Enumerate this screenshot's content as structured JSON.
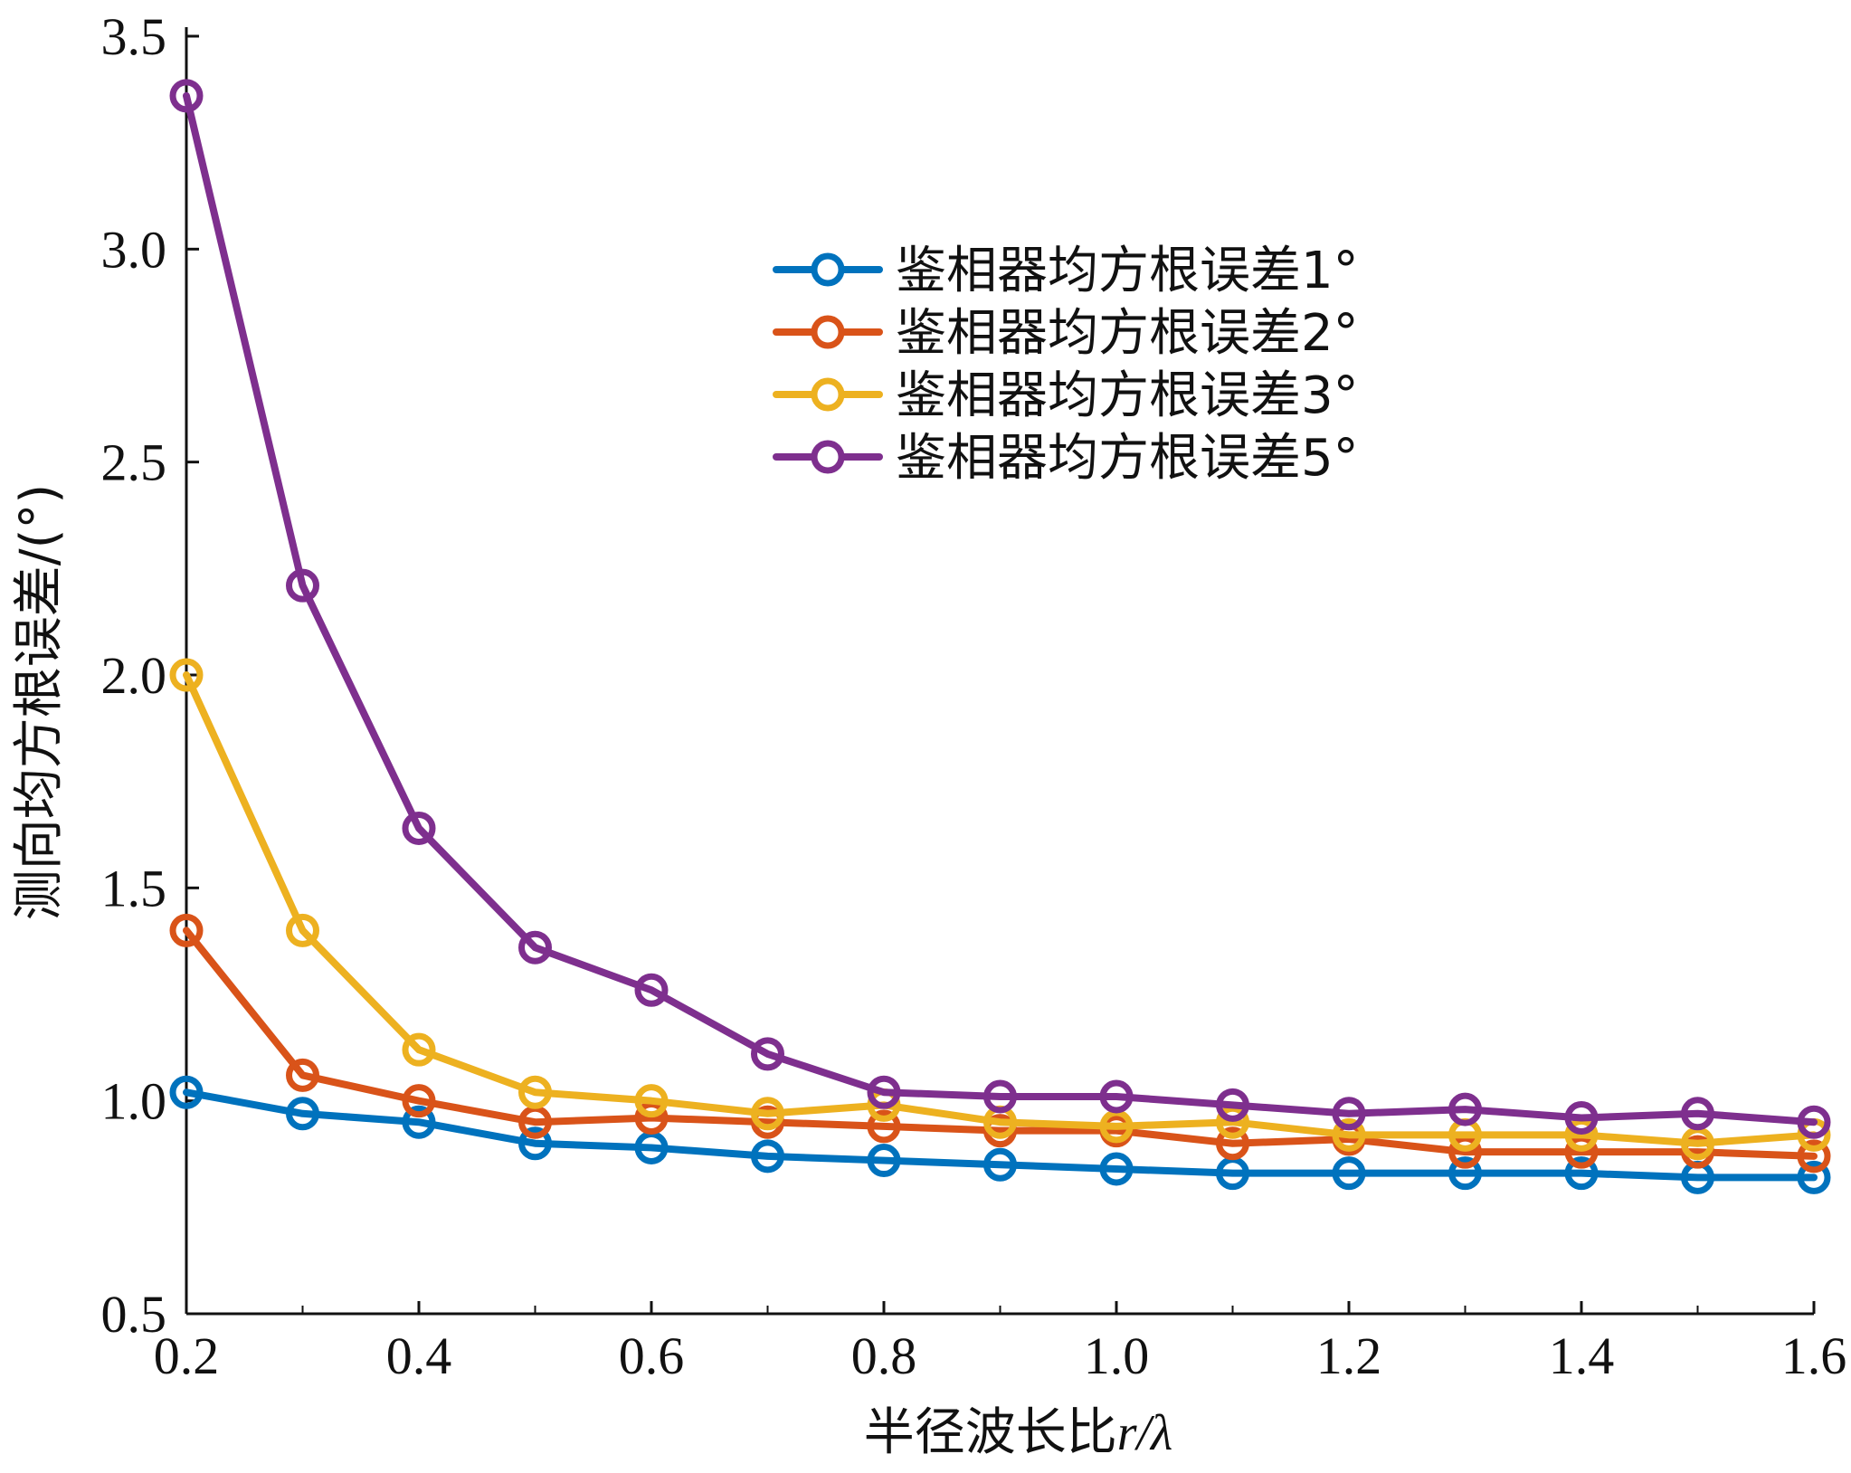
{
  "chart_data": {
    "type": "line",
    "title": "",
    "xlabel": "半径波长比",
    "xlabel_symbol": "r/λ",
    "ylabel": "测向均方根误差/(°)",
    "xlim": [
      0.2,
      1.6
    ],
    "ylim": [
      0.5,
      3.5
    ],
    "xticks": [
      "0.2",
      "0.4",
      "0.6",
      "0.8",
      "1.0",
      "1.2",
      "1.4",
      "1.6"
    ],
    "yticks": [
      "0.5",
      "1.0",
      "1.5",
      "2.0",
      "2.5",
      "3.0",
      "3.5"
    ],
    "x": [
      0.2,
      0.3,
      0.4,
      0.5,
      0.6,
      0.7,
      0.8,
      0.9,
      1.0,
      1.1,
      1.2,
      1.3,
      1.4,
      1.5,
      1.6
    ],
    "grid": false,
    "legend_position": "upper-right",
    "marker": "open-circle",
    "series": [
      {
        "name": "鉴相器均方根误差1°",
        "color": "#0072BD",
        "values": [
          1.02,
          0.97,
          0.95,
          0.9,
          0.89,
          0.87,
          0.86,
          0.85,
          0.84,
          0.83,
          0.83,
          0.83,
          0.83,
          0.82,
          0.82
        ]
      },
      {
        "name": "鉴相器均方根误差2°",
        "color": "#D95319",
        "values": [
          1.4,
          1.06,
          1.0,
          0.95,
          0.96,
          0.95,
          0.94,
          0.93,
          0.93,
          0.9,
          0.91,
          0.88,
          0.88,
          0.88,
          0.87
        ]
      },
      {
        "name": "鉴相器均方根误差3°",
        "color": "#EDB120",
        "values": [
          2.0,
          1.4,
          1.12,
          1.02,
          1.0,
          0.97,
          0.99,
          0.95,
          0.94,
          0.95,
          0.92,
          0.92,
          0.92,
          0.9,
          0.92
        ]
      },
      {
        "name": "鉴相器均方根误差5°",
        "color": "#7E2F8E",
        "values": [
          3.36,
          2.21,
          1.64,
          1.36,
          1.26,
          1.11,
          1.02,
          1.01,
          1.01,
          0.99,
          0.97,
          0.98,
          0.96,
          0.97,
          0.95
        ]
      }
    ]
  }
}
